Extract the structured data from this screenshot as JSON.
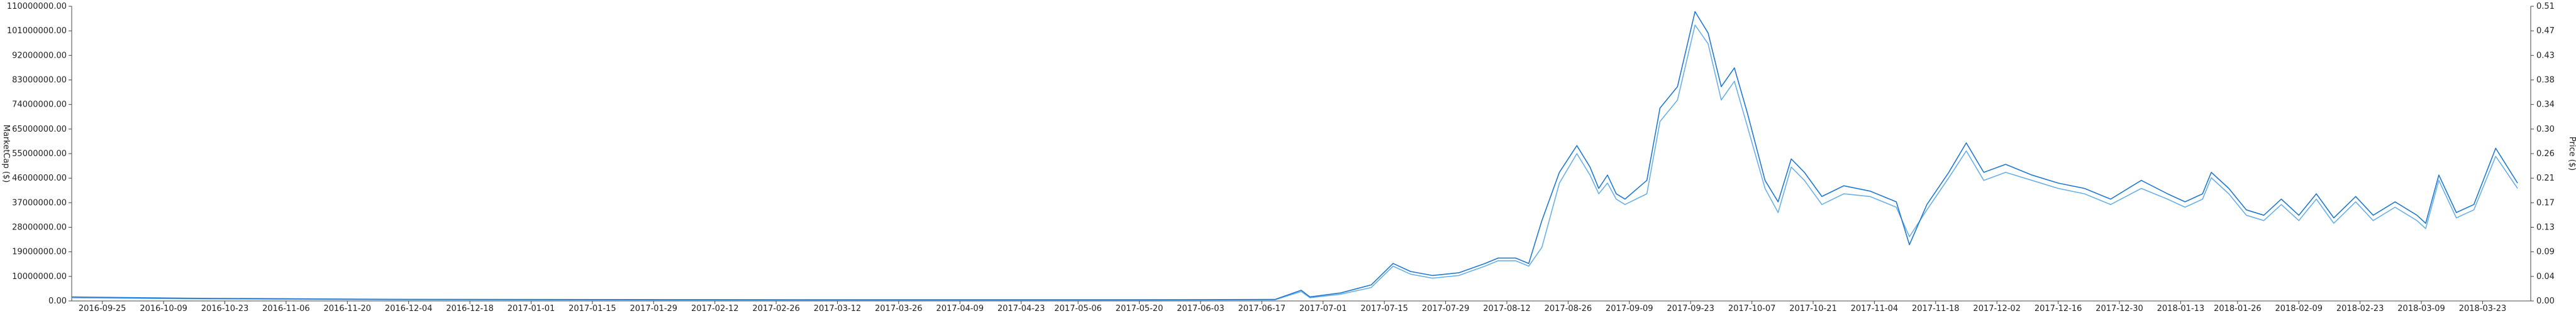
{
  "chart_data": {
    "type": "line",
    "x_ticks": [
      "2016-09-25",
      "2016-10-09",
      "2016-10-23",
      "2016-11-06",
      "2016-11-20",
      "2016-12-04",
      "2016-12-18",
      "2017-01-01",
      "2017-01-15",
      "2017-01-29",
      "2017-02-12",
      "2017-02-26",
      "2017-03-12",
      "2017-03-26",
      "2017-04-09",
      "2017-04-23",
      "2017-05-06",
      "2017-05-20",
      "2017-06-03",
      "2017-06-17",
      "2017-07-01",
      "2017-07-15",
      "2017-07-29",
      "2017-08-12",
      "2017-08-26",
      "2017-09-09",
      "2017-09-23",
      "2017-10-07",
      "2017-10-21",
      "2017-11-04",
      "2017-11-18",
      "2017-12-02",
      "2017-12-16",
      "2017-12-30",
      "2018-01-13",
      "2018-01-26",
      "2018-02-09",
      "2018-02-23",
      "2018-03-09",
      "2018-03-23"
    ],
    "x_range": [
      "2016-09-18",
      "2018-04-03"
    ],
    "y_left": {
      "label": "MarketCap ($)",
      "ticks": [
        "110000000.00",
        "101000000.00",
        "92000000.00",
        "83000000.00",
        "74000000.00",
        "65000000.00",
        "55000000.00",
        "46000000.00",
        "37000000.00",
        "28000000.00",
        "19000000.00",
        "10000000.00",
        "0.00"
      ],
      "range": [
        0,
        110000000
      ]
    },
    "y_right": {
      "label": "Price ($)",
      "ticks": [
        "0.51",
        "0.47",
        "0.43",
        "0.38",
        "0.34",
        "0.30",
        "0.26",
        "0.21",
        "0.17",
        "0.13",
        "0.09",
        "0.04",
        "0.00"
      ],
      "range": [
        0,
        0.51
      ]
    },
    "colors": {
      "marketcap": "#6ab0e8",
      "price": "#1f78d1",
      "axis": "#444444"
    },
    "grid": false,
    "series": [
      {
        "key": "marketcap",
        "points": [
          [
            "2016-09-18",
            1200000
          ],
          [
            "2016-10-15",
            800000
          ],
          [
            "2016-12-01",
            500000
          ],
          [
            "2017-02-01",
            400000
          ],
          [
            "2017-04-01",
            350000
          ],
          [
            "2017-05-20",
            350000
          ],
          [
            "2017-06-20",
            450000
          ],
          [
            "2017-06-26",
            3500000
          ],
          [
            "2017-06-28",
            1200000
          ],
          [
            "2017-07-05",
            2500000
          ],
          [
            "2017-07-12",
            5000000
          ],
          [
            "2017-07-17",
            13000000
          ],
          [
            "2017-07-21",
            10000000
          ],
          [
            "2017-07-26",
            8500000
          ],
          [
            "2017-08-01",
            9500000
          ],
          [
            "2017-08-07",
            13000000
          ],
          [
            "2017-08-10",
            15000000
          ],
          [
            "2017-08-14",
            15000000
          ],
          [
            "2017-08-17",
            13000000
          ],
          [
            "2017-08-20",
            20000000
          ],
          [
            "2017-08-24",
            44000000
          ],
          [
            "2017-08-28",
            55000000
          ],
          [
            "2017-08-31",
            47000000
          ],
          [
            "2017-09-02",
            40000000
          ],
          [
            "2017-09-04",
            44000000
          ],
          [
            "2017-09-06",
            38000000
          ],
          [
            "2017-09-08",
            36000000
          ],
          [
            "2017-09-13",
            40000000
          ],
          [
            "2017-09-16",
            67000000
          ],
          [
            "2017-09-20",
            75000000
          ],
          [
            "2017-09-24",
            103000000
          ],
          [
            "2017-09-27",
            96000000
          ],
          [
            "2017-09-30",
            75000000
          ],
          [
            "2017-10-03",
            82000000
          ],
          [
            "2017-10-06",
            65000000
          ],
          [
            "2017-10-10",
            42000000
          ],
          [
            "2017-10-13",
            33000000
          ],
          [
            "2017-10-16",
            50000000
          ],
          [
            "2017-10-19",
            45000000
          ],
          [
            "2017-10-23",
            36000000
          ],
          [
            "2017-10-28",
            40000000
          ],
          [
            "2017-11-03",
            39000000
          ],
          [
            "2017-11-09",
            35000000
          ],
          [
            "2017-11-12",
            24000000
          ],
          [
            "2017-11-16",
            34000000
          ],
          [
            "2017-11-21",
            46000000
          ],
          [
            "2017-11-25",
            56000000
          ],
          [
            "2017-11-29",
            45000000
          ],
          [
            "2017-12-04",
            48000000
          ],
          [
            "2017-12-10",
            45000000
          ],
          [
            "2017-12-16",
            42000000
          ],
          [
            "2017-12-22",
            40000000
          ],
          [
            "2017-12-28",
            36000000
          ],
          [
            "2018-01-04",
            42000000
          ],
          [
            "2018-01-10",
            38000000
          ],
          [
            "2018-01-14",
            35000000
          ],
          [
            "2018-01-18",
            38000000
          ],
          [
            "2018-01-20",
            46000000
          ],
          [
            "2018-01-24",
            40000000
          ],
          [
            "2018-01-28",
            32000000
          ],
          [
            "2018-02-01",
            30000000
          ],
          [
            "2018-02-05",
            36000000
          ],
          [
            "2018-02-09",
            30000000
          ],
          [
            "2018-02-13",
            38000000
          ],
          [
            "2018-02-17",
            29000000
          ],
          [
            "2018-02-22",
            37000000
          ],
          [
            "2018-02-26",
            30000000
          ],
          [
            "2018-03-03",
            35000000
          ],
          [
            "2018-03-08",
            30000000
          ],
          [
            "2018-03-10",
            27000000
          ],
          [
            "2018-03-13",
            45000000
          ],
          [
            "2018-03-17",
            31000000
          ],
          [
            "2018-03-21",
            34000000
          ],
          [
            "2018-03-26",
            54000000
          ],
          [
            "2018-03-31",
            42000000
          ]
        ]
      },
      {
        "key": "price",
        "points": [
          [
            "2016-09-18",
            1500000
          ],
          [
            "2016-10-15",
            1000000
          ],
          [
            "2016-12-01",
            600000
          ],
          [
            "2017-02-01",
            500000
          ],
          [
            "2017-04-01",
            450000
          ],
          [
            "2017-05-20",
            450000
          ],
          [
            "2017-06-20",
            550000
          ],
          [
            "2017-06-26",
            4000000
          ],
          [
            "2017-06-28",
            1500000
          ],
          [
            "2017-07-05",
            3000000
          ],
          [
            "2017-07-12",
            6000000
          ],
          [
            "2017-07-17",
            14000000
          ],
          [
            "2017-07-21",
            11000000
          ],
          [
            "2017-07-26",
            9500000
          ],
          [
            "2017-08-01",
            10500000
          ],
          [
            "2017-08-07",
            14000000
          ],
          [
            "2017-08-10",
            16000000
          ],
          [
            "2017-08-14",
            16000000
          ],
          [
            "2017-08-17",
            14000000
          ],
          [
            "2017-08-20",
            30000000
          ],
          [
            "2017-08-24",
            48000000
          ],
          [
            "2017-08-28",
            58000000
          ],
          [
            "2017-08-31",
            50000000
          ],
          [
            "2017-09-02",
            42000000
          ],
          [
            "2017-09-04",
            47000000
          ],
          [
            "2017-09-06",
            40000000
          ],
          [
            "2017-09-08",
            38000000
          ],
          [
            "2017-09-13",
            45000000
          ],
          [
            "2017-09-16",
            72000000
          ],
          [
            "2017-09-20",
            80000000
          ],
          [
            "2017-09-24",
            108000000
          ],
          [
            "2017-09-27",
            100000000
          ],
          [
            "2017-09-30",
            80000000
          ],
          [
            "2017-10-03",
            87000000
          ],
          [
            "2017-10-06",
            70000000
          ],
          [
            "2017-10-10",
            45000000
          ],
          [
            "2017-10-13",
            37000000
          ],
          [
            "2017-10-16",
            53000000
          ],
          [
            "2017-10-19",
            48000000
          ],
          [
            "2017-10-23",
            39000000
          ],
          [
            "2017-10-28",
            43000000
          ],
          [
            "2017-11-03",
            41000000
          ],
          [
            "2017-11-09",
            37000000
          ],
          [
            "2017-11-12",
            21000000
          ],
          [
            "2017-11-16",
            36000000
          ],
          [
            "2017-11-21",
            48000000
          ],
          [
            "2017-11-25",
            59000000
          ],
          [
            "2017-11-29",
            48000000
          ],
          [
            "2017-12-04",
            51000000
          ],
          [
            "2017-12-10",
            47000000
          ],
          [
            "2017-12-16",
            44000000
          ],
          [
            "2017-12-22",
            42000000
          ],
          [
            "2017-12-28",
            38000000
          ],
          [
            "2018-01-04",
            45000000
          ],
          [
            "2018-01-10",
            40000000
          ],
          [
            "2018-01-14",
            37000000
          ],
          [
            "2018-01-18",
            40000000
          ],
          [
            "2018-01-20",
            48000000
          ],
          [
            "2018-01-24",
            42000000
          ],
          [
            "2018-01-28",
            34000000
          ],
          [
            "2018-02-01",
            32000000
          ],
          [
            "2018-02-05",
            38000000
          ],
          [
            "2018-02-09",
            32000000
          ],
          [
            "2018-02-13",
            40000000
          ],
          [
            "2018-02-17",
            31000000
          ],
          [
            "2018-02-22",
            39000000
          ],
          [
            "2018-02-26",
            32000000
          ],
          [
            "2018-03-03",
            37000000
          ],
          [
            "2018-03-08",
            32000000
          ],
          [
            "2018-03-10",
            29000000
          ],
          [
            "2018-03-13",
            47000000
          ],
          [
            "2018-03-17",
            33000000
          ],
          [
            "2018-03-21",
            36000000
          ],
          [
            "2018-03-26",
            57000000
          ],
          [
            "2018-03-31",
            44000000
          ]
        ]
      }
    ]
  }
}
